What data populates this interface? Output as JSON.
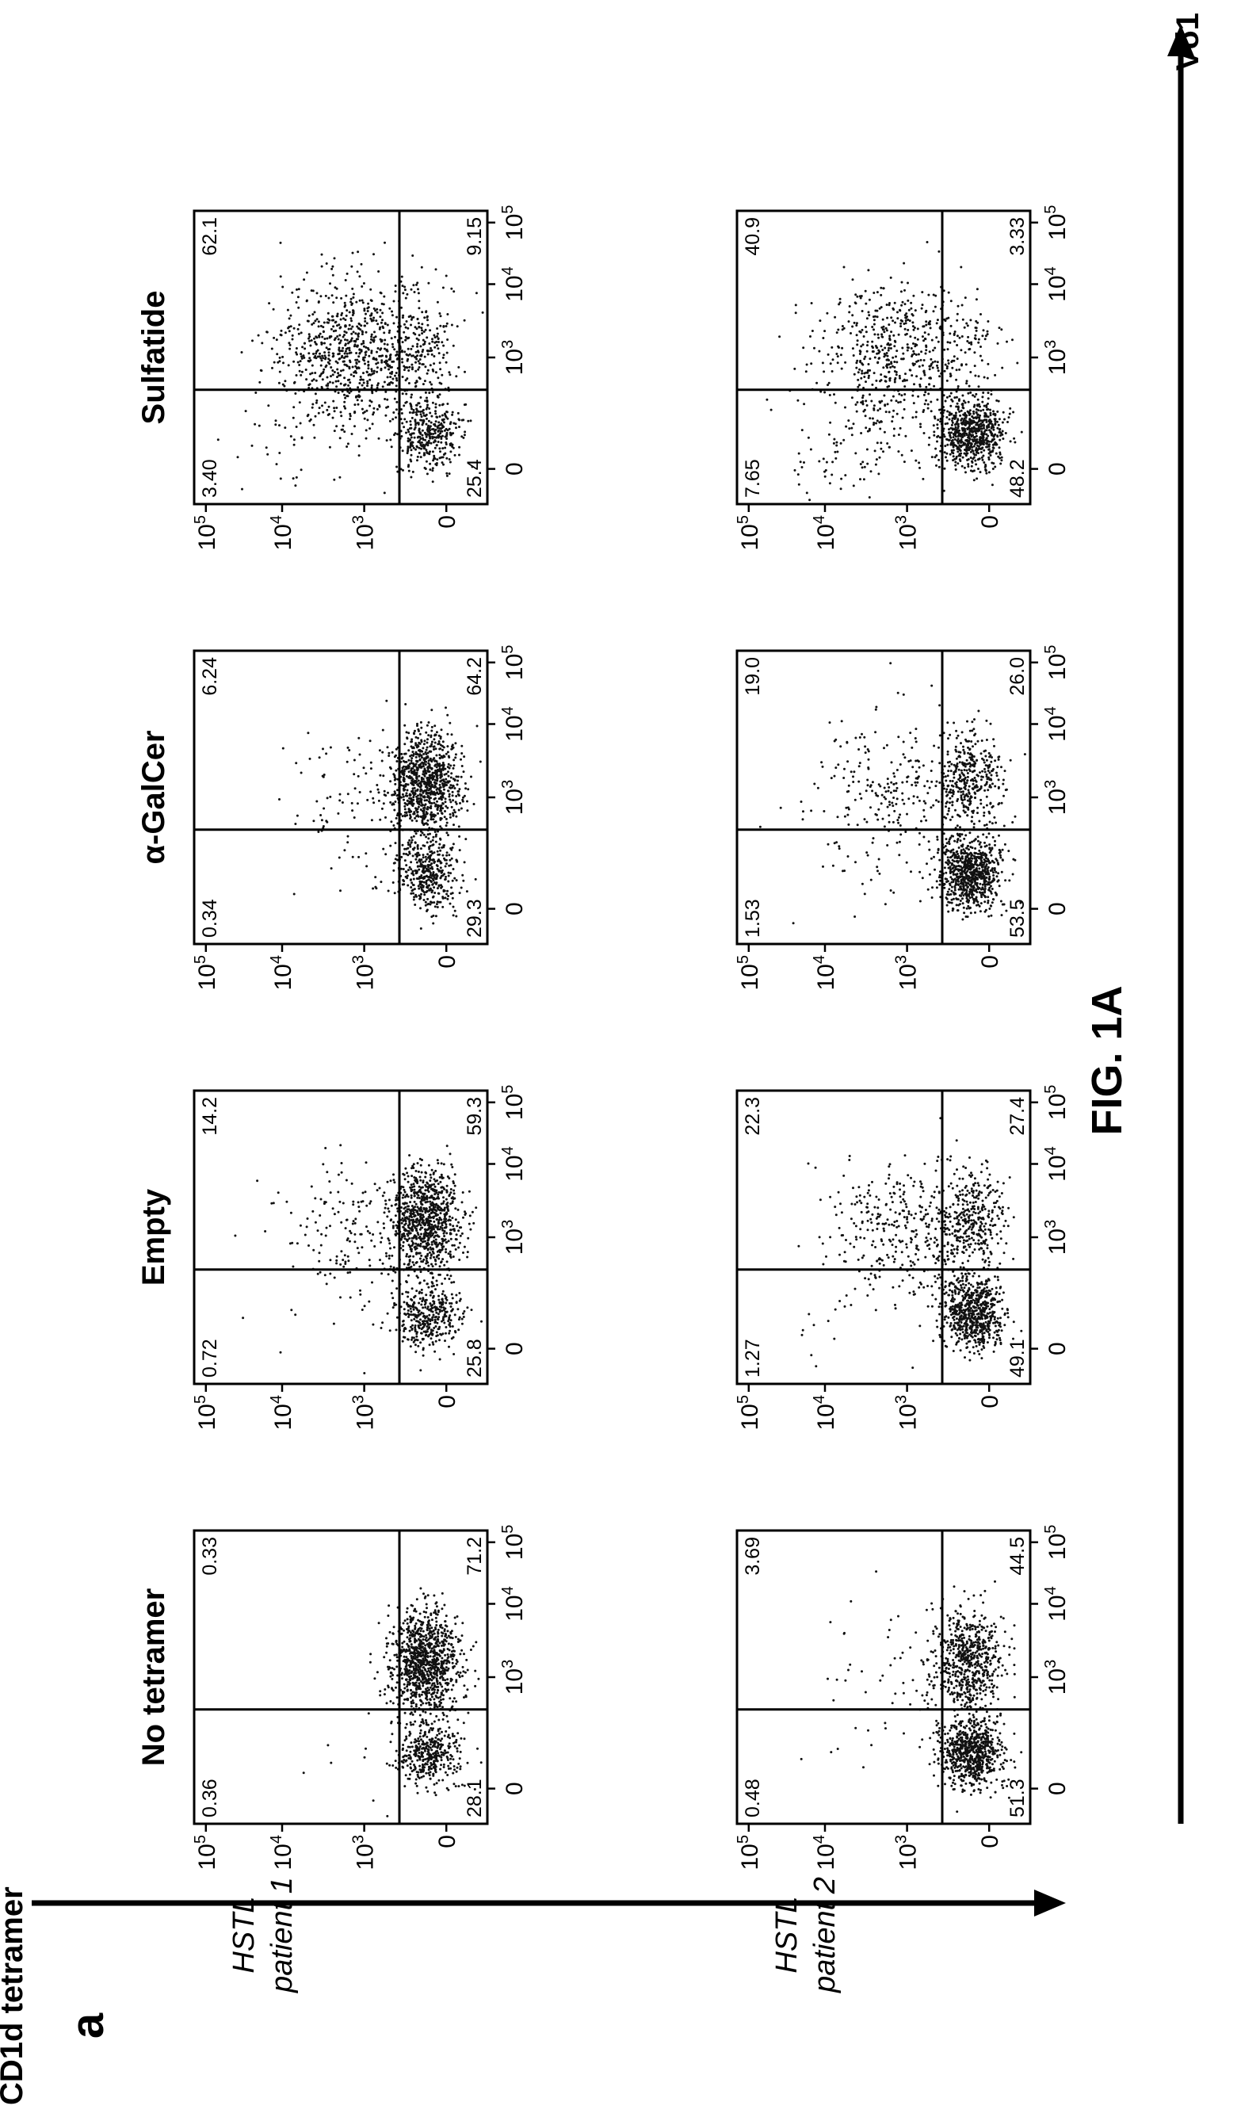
{
  "figure": {
    "title": "FIG. 1A",
    "panel_letter": "a",
    "y_axis_label": "CD1d tetramer",
    "x_axis_label": "Vδ1",
    "conditions": [
      "No tetramer",
      "Empty",
      "α-GalCer",
      "Sulfatide"
    ],
    "patients": [
      {
        "line1": "HSTL",
        "line2": "patient 1"
      },
      {
        "line1": "HSTL",
        "line2": "patient 2"
      }
    ],
    "tick_labels": {
      "zero": "0",
      "base": "10",
      "exponents": [
        "3",
        "4",
        "5"
      ]
    }
  },
  "chart_data": {
    "type": "scatter",
    "description_axes": {
      "x": "Vδ1",
      "y": "CD1d tetramer",
      "scale": "biexponential (0, 10^3, 10^4, 10^5)"
    },
    "quadrant_order": [
      "upper_left",
      "upper_right",
      "lower_left",
      "lower_right"
    ],
    "panels": [
      {
        "patient": "patient 1",
        "condition": "No tetramer",
        "quadrants": {
          "upper_left": "0.36",
          "upper_right": "0.33",
          "lower_left": "28.1",
          "lower_right": "71.2"
        }
      },
      {
        "patient": "patient 1",
        "condition": "Empty",
        "quadrants": {
          "upper_left": "0.72",
          "upper_right": "14.2",
          "lower_left": "25.8",
          "lower_right": "59.3"
        }
      },
      {
        "patient": "patient 1",
        "condition": "α-GalCer",
        "quadrants": {
          "upper_left": "0.34",
          "upper_right": "6.24",
          "lower_left": "29.3",
          "lower_right": "64.2"
        }
      },
      {
        "patient": "patient 1",
        "condition": "Sulfatide",
        "quadrants": {
          "upper_left": "3.40",
          "upper_right": "62.1",
          "lower_left": "25.4",
          "lower_right": "9.15"
        }
      },
      {
        "patient": "patient 2",
        "condition": "No tetramer",
        "quadrants": {
          "upper_left": "0.48",
          "upper_right": "3.69",
          "lower_left": "51.3",
          "lower_right": "44.5"
        }
      },
      {
        "patient": "patient 2",
        "condition": "Empty",
        "quadrants": {
          "upper_left": "1.27",
          "upper_right": "22.3",
          "lower_left": "49.1",
          "lower_right": "27.4"
        }
      },
      {
        "patient": "patient 2",
        "condition": "α-GalCer",
        "quadrants": {
          "upper_left": "1.53",
          "upper_right": "19.0",
          "lower_left": "53.5",
          "lower_right": "26.0"
        }
      },
      {
        "patient": "patient 2",
        "condition": "Sulfatide",
        "quadrants": {
          "upper_left": "7.65",
          "upper_right": "40.9",
          "lower_left": "48.2",
          "lower_right": "3.33"
        }
      }
    ]
  }
}
